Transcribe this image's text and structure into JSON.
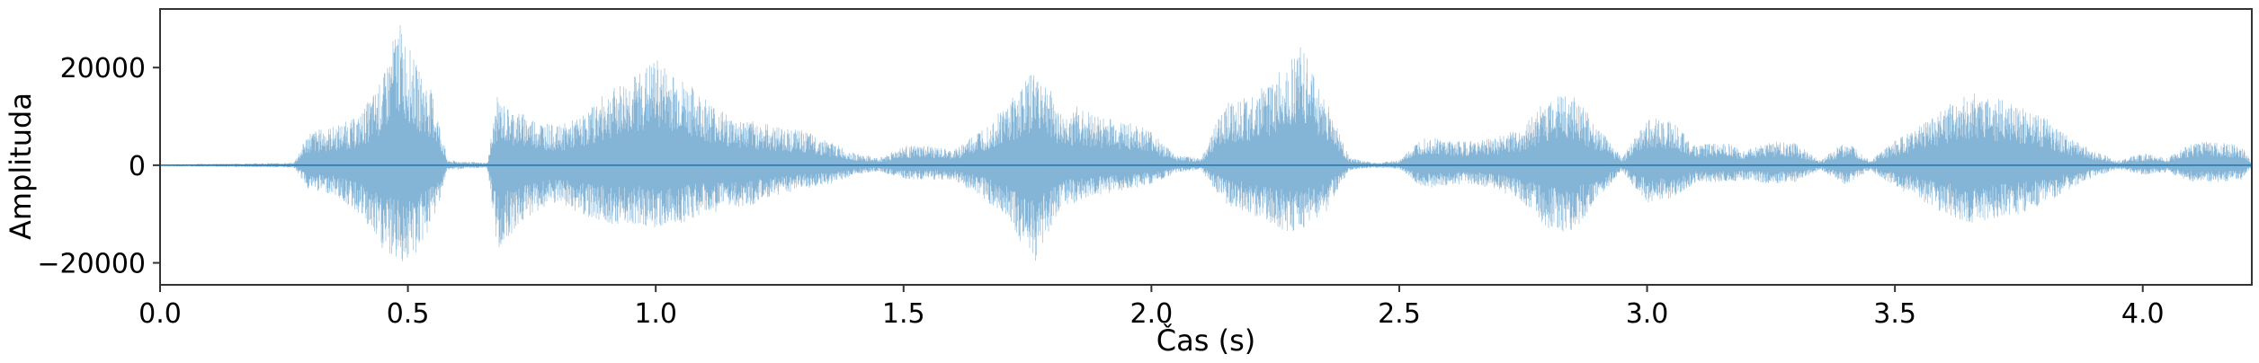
{
  "chart_data": {
    "type": "area",
    "title": "",
    "xlabel": "Čas (s)",
    "ylabel": "Amplituda",
    "xlim": [
      0.0,
      4.22
    ],
    "ylim": [
      -24500,
      32000
    ],
    "xticks": [
      0.0,
      0.5,
      1.0,
      1.5,
      2.0,
      2.5,
      3.0,
      3.5,
      4.0
    ],
    "xtick_labels": [
      "0.0",
      "0.5",
      "1.0",
      "1.5",
      "2.0",
      "2.5",
      "3.0",
      "3.5",
      "4.0"
    ],
    "yticks": [
      20000,
      0,
      -20000
    ],
    "ytick_labels": [
      "20000",
      "0",
      "−20000"
    ],
    "grid": false,
    "color": "#1f77b4",
    "series": [
      {
        "x": [
          0.0,
          0.27,
          0.3,
          0.35,
          0.4,
          0.45,
          0.48,
          0.5,
          0.52,
          0.55,
          0.57,
          0.58,
          0.66,
          0.68,
          0.7,
          0.75,
          0.8,
          0.85,
          0.9,
          0.95,
          1.0,
          1.05,
          1.1,
          1.15,
          1.2,
          1.25,
          1.3,
          1.35,
          1.4,
          1.45,
          1.5,
          1.55,
          1.6,
          1.65,
          1.7,
          1.75,
          1.77,
          1.8,
          1.82,
          1.85,
          1.9,
          1.95,
          2.0,
          2.05,
          2.1,
          2.15,
          2.2,
          2.25,
          2.3,
          2.35,
          2.4,
          2.45,
          2.5,
          2.55,
          2.6,
          2.65,
          2.7,
          2.75,
          2.8,
          2.85,
          2.9,
          2.95,
          3.0,
          3.05,
          3.1,
          3.15,
          3.2,
          3.25,
          3.3,
          3.35,
          3.4,
          3.45,
          3.5,
          3.55,
          3.6,
          3.65,
          3.7,
          3.75,
          3.8,
          3.85,
          3.9,
          3.95,
          4.0,
          4.05,
          4.1,
          4.15,
          4.2,
          4.22
        ],
        "max": [
          200,
          500,
          7000,
          8000,
          10000,
          18000,
          30000,
          25000,
          20000,
          15000,
          6000,
          1000,
          500,
          14000,
          12000,
          10000,
          8000,
          10000,
          15000,
          18000,
          22000,
          18000,
          14000,
          10000,
          9000,
          8000,
          7000,
          5000,
          2500,
          1500,
          4000,
          4000,
          3000,
          7000,
          12000,
          18000,
          20000,
          15000,
          10000,
          12000,
          10000,
          9000,
          7000,
          2000,
          1500,
          13000,
          14000,
          18000,
          25000,
          14000,
          1500,
          500,
          1000,
          6000,
          5000,
          5000,
          6000,
          8000,
          14000,
          15000,
          8000,
          1500,
          10000,
          9000,
          4000,
          5000,
          3000,
          5000,
          4500,
          1000,
          5000,
          1000,
          5000,
          8000,
          12000,
          15000,
          14000,
          12000,
          10000,
          6000,
          3000,
          1000,
          2500,
          1500,
          5000,
          5000,
          4000,
          500
        ],
        "min": [
          -200,
          -500,
          -5000,
          -6000,
          -10000,
          -18000,
          -20000,
          -20000,
          -18000,
          -12000,
          -5000,
          -1000,
          -500,
          -18000,
          -15000,
          -10000,
          -8000,
          -10000,
          -12000,
          -12000,
          -13000,
          -12000,
          -10000,
          -9000,
          -8000,
          -6000,
          -5000,
          -4000,
          -2000,
          -1200,
          -3000,
          -3000,
          -3000,
          -6000,
          -10000,
          -18000,
          -20000,
          -12000,
          -8000,
          -8000,
          -6000,
          -5000,
          -4000,
          -1500,
          -1000,
          -8000,
          -10000,
          -13000,
          -14000,
          -10000,
          -1000,
          -500,
          -800,
          -5000,
          -4000,
          -4000,
          -5000,
          -8000,
          -13000,
          -14000,
          -7000,
          -1200,
          -8000,
          -7000,
          -3500,
          -3500,
          -3000,
          -4000,
          -3500,
          -1000,
          -4000,
          -1000,
          -4500,
          -7000,
          -10000,
          -12000,
          -11000,
          -10000,
          -8000,
          -5000,
          -2500,
          -800,
          -2000,
          -1500,
          -3500,
          -3500,
          -3000,
          -500
        ]
      }
    ]
  }
}
